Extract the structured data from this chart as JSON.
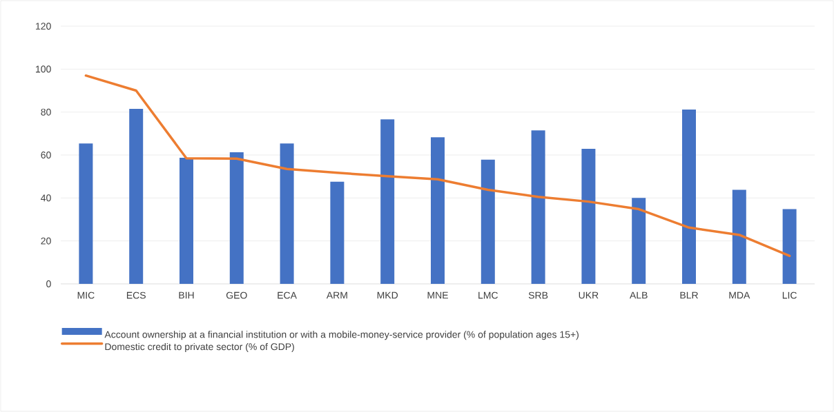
{
  "chart_data": {
    "type": "bar",
    "categories": [
      "MIC",
      "ECS",
      "BIH",
      "GEO",
      "ECA",
      "ARM",
      "MKD",
      "MNE",
      "LMC",
      "SRB",
      "UKR",
      "ALB",
      "BLR",
      "MDA",
      "LIC"
    ],
    "series": [
      {
        "name": "Account ownership at a financial institution or with a mobile-money-service provider (% of population ages 15+)",
        "color": "#4472c4",
        "values": [
          65.4,
          81.5,
          58.7,
          61.3,
          65.4,
          47.6,
          76.6,
          68.3,
          57.8,
          71.5,
          62.9,
          40,
          81.2,
          43.8,
          34.8
        ]
      },
      {
        "name": "Domestic credit to private sector (% of GDP)",
        "type": "line",
        "color": "#ed7d31",
        "values": [
          97,
          90,
          58.5,
          58.3,
          53.5,
          51.7,
          50.1,
          48.7,
          43.8,
          40.5,
          38.3,
          34.8,
          26.2,
          22.8,
          13
        ]
      }
    ],
    "ylim": [
      0,
      120
    ],
    "yticks": [
      0,
      20,
      40,
      60,
      80,
      100,
      120
    ],
    "grid": "y",
    "legend": "bottom"
  }
}
